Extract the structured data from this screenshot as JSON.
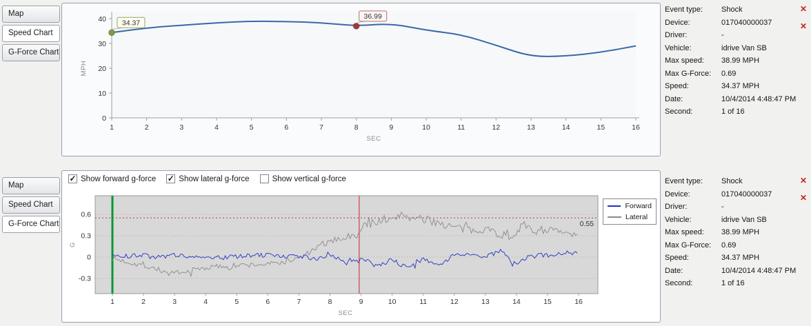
{
  "icons": {
    "close": "✕",
    "check": "✓"
  },
  "info_panel": {
    "rows": [
      {
        "label": "Event type:",
        "value": "Shock"
      },
      {
        "label": "Device:",
        "value": "017040000037"
      },
      {
        "label": "Driver:",
        "value": "-"
      },
      {
        "label": "Vehicle:",
        "value": "idrive Van SB"
      },
      {
        "label": "Max speed:",
        "value": "38.99 MPH"
      },
      {
        "label": "Max G-Force:",
        "value": "0.69"
      },
      {
        "label": "Speed:",
        "value": "34.37 MPH"
      },
      {
        "label": "Date:",
        "value": "10/4/2014 4:48:47 PM"
      },
      {
        "label": "Second:",
        "value": "1 of 16"
      }
    ]
  },
  "top_panel": {
    "tabs": [
      {
        "label": "Map",
        "selected": false
      },
      {
        "label": "Speed Chart",
        "selected": true
      },
      {
        "label": "G-Force Chart",
        "selected": false
      }
    ]
  },
  "bottom_panel": {
    "tabs": [
      {
        "label": "Map",
        "selected": false
      },
      {
        "label": "Speed Chart",
        "selected": false
      },
      {
        "label": "G-Force Chart",
        "selected": true
      }
    ],
    "checkboxes": [
      {
        "label": "Show forward g-force",
        "checked": true
      },
      {
        "label": "Show lateral g-force",
        "checked": true
      },
      {
        "label": "Show vertical g-force",
        "checked": false
      }
    ]
  },
  "chart_data": [
    {
      "type": "line",
      "title": "",
      "xlabel": "SEC",
      "ylabel": "MPH",
      "x": [
        1,
        2,
        3,
        4,
        5,
        6,
        7,
        8,
        9,
        10,
        11,
        12,
        13,
        14,
        15,
        16
      ],
      "values": [
        34.37,
        36.3,
        37.3,
        38.3,
        38.99,
        38.8,
        38.4,
        36.99,
        38.05,
        35.3,
        33.6,
        29.3,
        24.6,
        24.9,
        26.4,
        29.0
      ],
      "ylim": [
        0,
        40
      ],
      "yticks": [
        0,
        10,
        20,
        30,
        40
      ],
      "line_color": "#3a68a8",
      "annotations": [
        {
          "x": 1,
          "y": 34.37,
          "label": "34.37",
          "marker_color": "#7b9e3e",
          "border": "#98a85a",
          "text_color": "#6b7a3a",
          "box_fill": "#fdfdf2"
        },
        {
          "x": 8,
          "y": 36.99,
          "label": "36.99",
          "marker_color": "#9e3b39",
          "border": "#b07070",
          "text_color": "#9e3b39",
          "box_fill": "#fdf6f4"
        }
      ]
    },
    {
      "type": "line",
      "title": "",
      "xlabel": "SEC",
      "ylabel": "G",
      "xlim": [
        1,
        16
      ],
      "xticks": [
        1,
        2,
        3,
        4,
        5,
        6,
        7,
        8,
        9,
        10,
        11,
        12,
        13,
        14,
        15,
        16
      ],
      "yticks": [
        -0.3,
        0,
        0.3,
        0.6
      ],
      "plot_bg": "#d8d8d8",
      "threshold": {
        "value": 0.55,
        "label": "0.55",
        "color": "#bb3333"
      },
      "event_lines": [
        {
          "x": 1,
          "color": "#009933",
          "width": 3
        },
        {
          "x": 8.94,
          "color": "#cc2222",
          "width": 1
        }
      ],
      "series": [
        {
          "name": "Forward",
          "color": "#2230c0",
          "noise": 0.032,
          "keypoints": [
            [
              1,
              0.02
            ],
            [
              1.5,
              0.01
            ],
            [
              2,
              0.03
            ],
            [
              2.5,
              0.0
            ],
            [
              3,
              0.03
            ],
            [
              3.5,
              0.01
            ],
            [
              4,
              0.02
            ],
            [
              4.5,
              -0.01
            ],
            [
              5,
              0.01
            ],
            [
              5.5,
              0.02
            ],
            [
              6,
              0.03
            ],
            [
              6.5,
              0.0
            ],
            [
              7,
              0.02
            ],
            [
              7.5,
              -0.03
            ],
            [
              8,
              0.02
            ],
            [
              8.5,
              -0.06
            ],
            [
              9,
              -0.01
            ],
            [
              9.5,
              -0.13
            ],
            [
              10,
              -0.04
            ],
            [
              10.5,
              -0.15
            ],
            [
              11,
              -0.04
            ],
            [
              11.5,
              -0.1
            ],
            [
              12,
              0.02
            ],
            [
              12.5,
              0.05
            ],
            [
              13,
              0.01
            ],
            [
              13.5,
              0.08
            ],
            [
              14,
              -0.11
            ],
            [
              14.5,
              0.04
            ],
            [
              15,
              0.02
            ],
            [
              15.5,
              0.07
            ],
            [
              16,
              0.05
            ]
          ]
        },
        {
          "name": "Lateral",
          "color": "#8a8a8a",
          "noise": 0.038,
          "noise_boost": {
            "from": 8.9,
            "to": 15.2,
            "factor": 1.6
          },
          "keypoints": [
            [
              1,
              -0.02
            ],
            [
              1.4,
              -0.06
            ],
            [
              2,
              -0.12
            ],
            [
              2.4,
              -0.16
            ],
            [
              2.8,
              -0.23
            ],
            [
              3.2,
              -0.24
            ],
            [
              3.6,
              -0.18
            ],
            [
              4,
              -0.15
            ],
            [
              4.5,
              -0.13
            ],
            [
              5,
              -0.12
            ],
            [
              5.5,
              -0.11
            ],
            [
              6,
              -0.1
            ],
            [
              6.5,
              -0.07
            ],
            [
              7,
              -0.02
            ],
            [
              7.4,
              0.08
            ],
            [
              7.8,
              0.18
            ],
            [
              8.2,
              0.25
            ],
            [
              8.6,
              0.28
            ],
            [
              8.9,
              0.3
            ],
            [
              9.1,
              0.45
            ],
            [
              9.4,
              0.48
            ],
            [
              9.7,
              0.54
            ],
            [
              10,
              0.5
            ],
            [
              10.3,
              0.62
            ],
            [
              10.6,
              0.55
            ],
            [
              11,
              0.52
            ],
            [
              11.4,
              0.5
            ],
            [
              11.8,
              0.44
            ],
            [
              12.2,
              0.4
            ],
            [
              12.6,
              0.37
            ],
            [
              13,
              0.41
            ],
            [
              13.4,
              0.33
            ],
            [
              13.8,
              0.28
            ],
            [
              14.2,
              0.46
            ],
            [
              14.5,
              0.36
            ],
            [
              15,
              0.4
            ],
            [
              15.5,
              0.34
            ],
            [
              16,
              0.3
            ]
          ]
        }
      ]
    }
  ]
}
